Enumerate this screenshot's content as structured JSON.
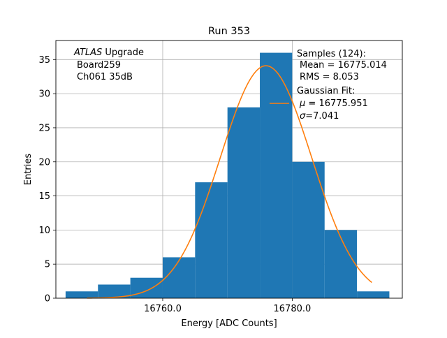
{
  "chart_data": {
    "type": "bar",
    "title": "Run 353",
    "xlabel": "Energy [ADC Counts]",
    "ylabel": "Entries",
    "xlim": [
      16743.5,
      16797.0
    ],
    "ylim": [
      0,
      37.8
    ],
    "grid": true,
    "x_ticks": [
      16760.0,
      16780.0
    ],
    "x_tick_labels": [
      "16760.0",
      "16780.0"
    ],
    "y_ticks": [
      0,
      5,
      10,
      15,
      20,
      25,
      30,
      35
    ],
    "y_tick_labels": [
      "0",
      "5",
      "10",
      "15",
      "20",
      "25",
      "30",
      "35"
    ],
    "bar_color": "#1f77b4",
    "fit_color": "#ff7f0e",
    "bins": [
      {
        "x0": 16745,
        "x1": 16750,
        "count": 1
      },
      {
        "x0": 16750,
        "x1": 16755,
        "count": 2
      },
      {
        "x0": 16755,
        "x1": 16760,
        "count": 3
      },
      {
        "x0": 16760,
        "x1": 16765,
        "count": 6
      },
      {
        "x0": 16765,
        "x1": 16770,
        "count": 17
      },
      {
        "x0": 16770,
        "x1": 16775,
        "count": 28
      },
      {
        "x0": 16775,
        "x1": 16780,
        "count": 36
      },
      {
        "x0": 16780,
        "x1": 16785,
        "count": 20
      },
      {
        "x0": 16785,
        "x1": 16790,
        "count": 10
      },
      {
        "x0": 16790,
        "x1": 16795,
        "count": 1
      }
    ],
    "fit": {
      "mu": 16775.951,
      "sigma": 7.041,
      "amplitude": 34.1,
      "x_range": [
        16748.3,
        16792.3
      ]
    },
    "annotation": {
      "experiment": "ATLAS",
      "suffix": " Upgrade",
      "board": "Board259",
      "channel": "Ch061 35dB"
    },
    "legend": {
      "placement": "top-right",
      "samples": "Samples (124):",
      "mean": "Mean = 16775.014",
      "rms": "RMS = 8.053",
      "fit_title": "Gaussian Fit:",
      "mu_sym": "μ",
      "mu_text": " = 16775.951",
      "sigma_sym": "σ",
      "sigma_text": "=7.041"
    }
  }
}
